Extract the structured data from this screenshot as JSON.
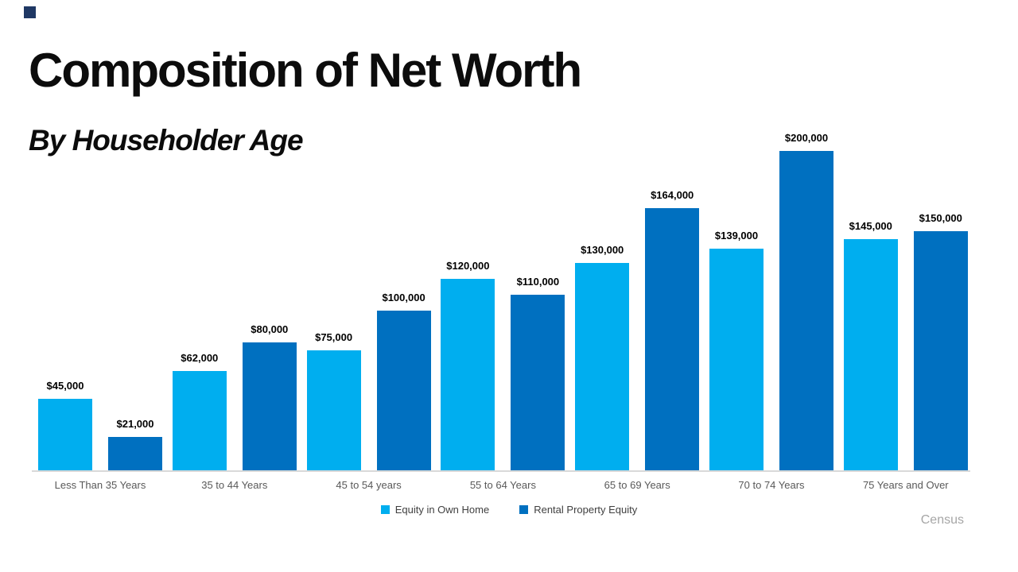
{
  "slide": {
    "title": "Composition of Net Worth",
    "subtitle": "By Householder Age",
    "source": "Census",
    "accent_square_color": "#1F3864",
    "background_color": "#FFFFFF"
  },
  "chart_data": {
    "type": "bar",
    "title": "Composition of Net Worth",
    "subtitle": "By Householder Age",
    "categories": [
      "Less Than 35 Years",
      "35 to 44 Years",
      "45 to 54 years",
      "55 to 64 Years",
      "65 to 69 Years",
      "70 to 74 Years",
      "75 Years and Over"
    ],
    "series": [
      {
        "name": "Equity in Own Home",
        "color": "#00AEEF",
        "values": [
          45000,
          62000,
          75000,
          120000,
          130000,
          139000,
          145000
        ],
        "labels": [
          "$45,000",
          "$62,000",
          "$75,000",
          "$120,000",
          "$130,000",
          "$139,000",
          "$145,000"
        ]
      },
      {
        "name": "Rental Property Equity",
        "color": "#0070C0",
        "values": [
          21000,
          80000,
          100000,
          110000,
          164000,
          200000,
          150000
        ],
        "labels": [
          "$21,000",
          "$80,000",
          "$100,000",
          "$110,000",
          "$164,000",
          "$200,000",
          "$150,000"
        ]
      }
    ],
    "value_axis": {
      "min": 0,
      "max": 200000,
      "visible": false
    },
    "category_axis_line_color": "#D9D9D9",
    "gridlines": false,
    "data_labels": true,
    "legend_position": "bottom"
  }
}
